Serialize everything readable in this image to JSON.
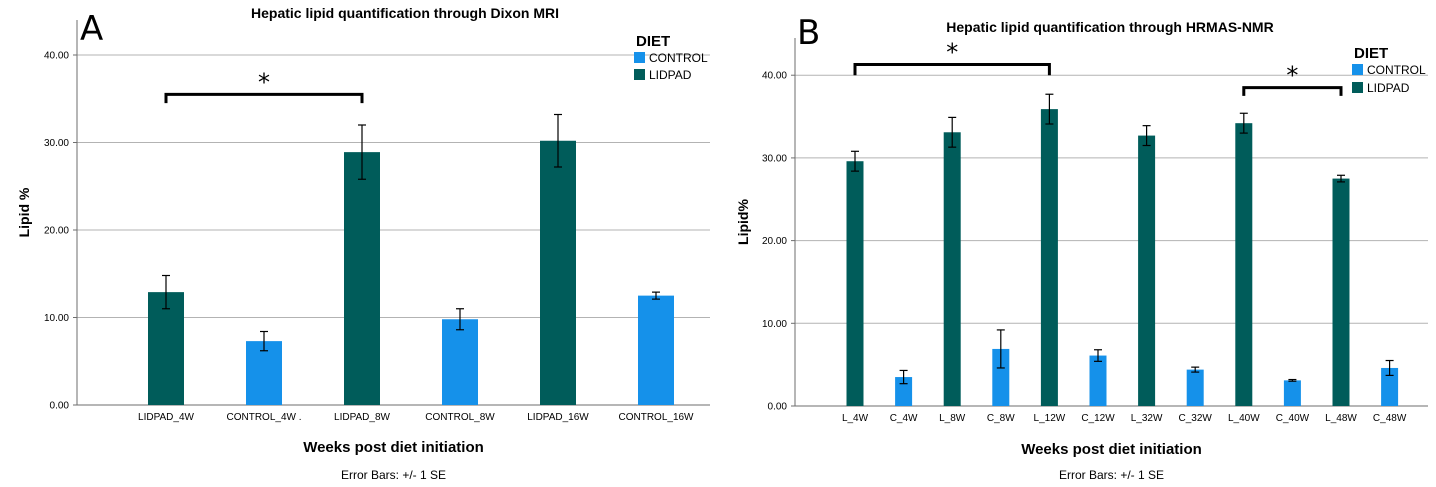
{
  "colors": {
    "CONTROL": "#1591ea",
    "LIDPAD": "#005c5a",
    "grid": "#b3b3b3",
    "axis": "#6e6e6e"
  },
  "chart_data": [
    {
      "panel": "A",
      "type": "bar",
      "title": "Hepatic lipid quantification through Dixon MRI",
      "xlabel": "Weeks post diet initiation",
      "ylabel": "Lipid %",
      "note": "Error Bars: +/- 1 SE",
      "ylim": [
        0,
        44
      ],
      "yticks": [
        0,
        10,
        20,
        30,
        40
      ],
      "ytick_labels": [
        "0.00",
        "10.00",
        "20.00",
        "30.00",
        "40.00"
      ],
      "grid": true,
      "legend": {
        "title": "DIET",
        "position": "top-right",
        "entries": [
          "CONTROL",
          "LIDPAD"
        ]
      },
      "categories": [
        "LIDPAD_4W",
        "CONTROL_4W .",
        "LIDPAD_8W",
        "CONTROL_8W",
        "LIDPAD_16W",
        "CONTROL_16W"
      ],
      "bars": [
        {
          "category": "LIDPAD_4W",
          "group": "LIDPAD",
          "value": 12.9,
          "se": 1.9
        },
        {
          "category": "CONTROL_4W .",
          "group": "CONTROL",
          "value": 7.3,
          "se": 1.1
        },
        {
          "category": "LIDPAD_8W",
          "group": "LIDPAD",
          "value": 28.9,
          "se": 3.1
        },
        {
          "category": "CONTROL_8W",
          "group": "CONTROL",
          "value": 9.8,
          "se": 1.2
        },
        {
          "category": "LIDPAD_16W",
          "group": "LIDPAD",
          "value": 30.2,
          "se": 3.0
        },
        {
          "category": "CONTROL_16W",
          "group": "CONTROL",
          "value": 12.5,
          "se": 0.4
        }
      ],
      "annotations": [
        {
          "text": "*",
          "from": "LIDPAD_4W",
          "to": "LIDPAD_8W",
          "y": 35.5,
          "tip": 34.5
        }
      ]
    },
    {
      "panel": "B",
      "type": "bar",
      "title": "Hepatic lipid quantification through HRMAS-NMR",
      "xlabel": "Weeks post diet initiation",
      "ylabel": "Lipid%",
      "note": "Error Bars: +/- 1 SE",
      "ylim": [
        0,
        44.5
      ],
      "yticks": [
        0,
        10,
        20,
        30,
        40
      ],
      "ytick_labels": [
        "0.00",
        "10.00",
        "20.00",
        "30.00",
        "40.00"
      ],
      "grid": true,
      "legend": {
        "title": "DIET",
        "position": "top-right",
        "entries": [
          "CONTROL",
          "LIDPAD"
        ]
      },
      "categories": [
        "L_4W",
        "C_4W",
        "L_8W",
        "C_8W",
        "L_12W",
        "C_12W",
        "L_32W",
        "C_32W",
        "L_40W",
        "C_40W",
        "L_48W",
        "C_48W"
      ],
      "bars": [
        {
          "category": "L_4W",
          "group": "LIDPAD",
          "value": 29.6,
          "se": 1.2
        },
        {
          "category": "C_4W",
          "group": "CONTROL",
          "value": 3.5,
          "se": 0.8
        },
        {
          "category": "L_8W",
          "group": "LIDPAD",
          "value": 33.1,
          "se": 1.8
        },
        {
          "category": "C_8W",
          "group": "CONTROL",
          "value": 6.9,
          "se": 2.3
        },
        {
          "category": "L_12W",
          "group": "LIDPAD",
          "value": 35.9,
          "se": 1.8
        },
        {
          "category": "C_12W",
          "group": "CONTROL",
          "value": 6.1,
          "se": 0.7
        },
        {
          "category": "L_32W",
          "group": "LIDPAD",
          "value": 32.7,
          "se": 1.2
        },
        {
          "category": "C_32W",
          "group": "CONTROL",
          "value": 4.4,
          "se": 0.3
        },
        {
          "category": "L_40W",
          "group": "LIDPAD",
          "value": 34.2,
          "se": 1.2
        },
        {
          "category": "C_40W",
          "group": "CONTROL",
          "value": 3.1,
          "se": 0.1
        },
        {
          "category": "L_48W",
          "group": "LIDPAD",
          "value": 27.5,
          "se": 0.4
        },
        {
          "category": "C_48W",
          "group": "CONTROL",
          "value": 4.6,
          "se": 0.9
        }
      ],
      "annotations": [
        {
          "text": "*",
          "from": "L_4W",
          "to": "L_12W",
          "y": 41.3,
          "tip": 40.0
        },
        {
          "text": "*",
          "from": "L_40W",
          "to": "L_48W",
          "y": 38.5,
          "tip": 37.5
        }
      ]
    }
  ]
}
